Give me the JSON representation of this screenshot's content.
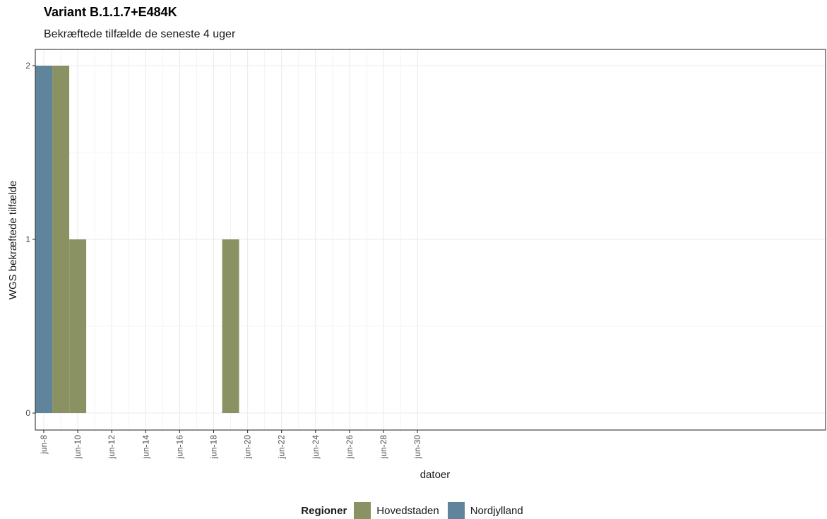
{
  "chart_data": {
    "type": "bar",
    "title": "Variant B.1.1.7+E484K",
    "subtitle": "Bekræftede tilfælde de seneste 4 uger",
    "xlabel": "datoer",
    "ylabel": "WGS bekræftede tilfælde",
    "x_domain": [
      "jun-8",
      "jun-30"
    ],
    "x_ticks": [
      "jun-8",
      "jun-10",
      "jun-12",
      "jun-14",
      "jun-16",
      "jun-18",
      "jun-20",
      "jun-22",
      "jun-24",
      "jun-26",
      "jun-28",
      "jun-30"
    ],
    "y_ticks": [
      "0",
      "1",
      "2"
    ],
    "ylim": [
      0,
      2
    ],
    "grid": true,
    "legend_position": "bottom",
    "legend_title": "Regioner",
    "series": [
      {
        "name": "Hovedstaden",
        "color": "#8a9263",
        "points": [
          {
            "date": "jun-9",
            "value": 2
          },
          {
            "date": "jun-10",
            "value": 1
          },
          {
            "date": "jun-19",
            "value": 1
          }
        ]
      },
      {
        "name": "Nordjylland",
        "color": "#5f849c",
        "points": [
          {
            "date": "jun-8",
            "value": 2
          }
        ]
      }
    ]
  }
}
